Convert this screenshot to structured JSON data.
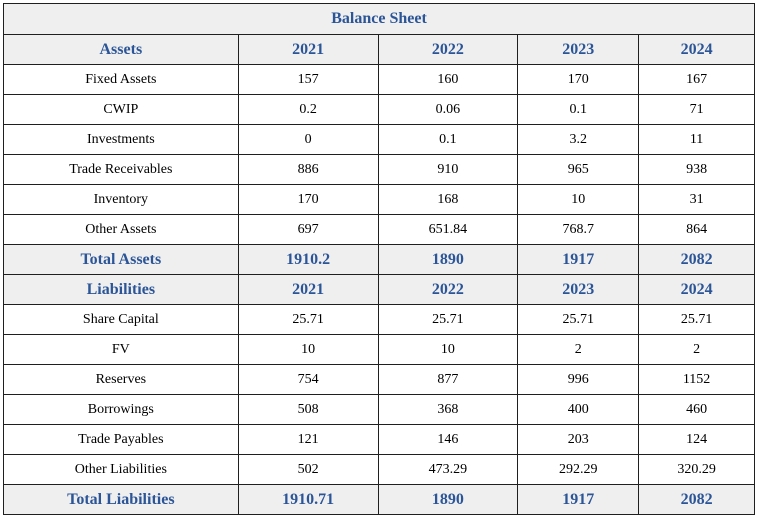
{
  "table": {
    "title": "Balance Sheet",
    "assets_header": [
      "Assets",
      "2021",
      "2022",
      "2023",
      "2024"
    ],
    "assets_rows": [
      [
        "Fixed Assets",
        "157",
        "160",
        "170",
        "167"
      ],
      [
        "CWIP",
        "0.2",
        "0.06",
        "0.1",
        "71"
      ],
      [
        "Investments",
        "0",
        "0.1",
        "3.2",
        "11"
      ],
      [
        "Trade Receivables",
        "886",
        "910",
        "965",
        "938"
      ],
      [
        "Inventory",
        "170",
        "168",
        "10",
        "31"
      ],
      [
        "Other Assets",
        "697",
        "651.84",
        "768.7",
        "864"
      ]
    ],
    "assets_total": [
      "Total Assets",
      "1910.2",
      "1890",
      "1917",
      "2082"
    ],
    "liabilities_header": [
      "Liabilities",
      "2021",
      "2022",
      "2023",
      "2024"
    ],
    "liabilities_rows": [
      [
        "Share Capital",
        "25.71",
        "25.71",
        "25.71",
        "25.71"
      ],
      [
        "FV",
        "10",
        "10",
        "2",
        "2"
      ],
      [
        "Reserves",
        "754",
        "877",
        "996",
        "1152"
      ],
      [
        "Borrowings",
        "508",
        "368",
        "400",
        "460"
      ],
      [
        "Trade Payables",
        "121",
        "146",
        "203",
        "124"
      ],
      [
        "Other Liabilities",
        "502",
        "473.29",
        "292.29",
        "320.29"
      ]
    ],
    "liabilities_total": [
      "Total Liabilities",
      "1910.71",
      "1890",
      "1917",
      "2082"
    ]
  },
  "colors": {
    "header_text": "#2b5597",
    "header_bg": "#efefef",
    "border": "#1f1f1f"
  }
}
